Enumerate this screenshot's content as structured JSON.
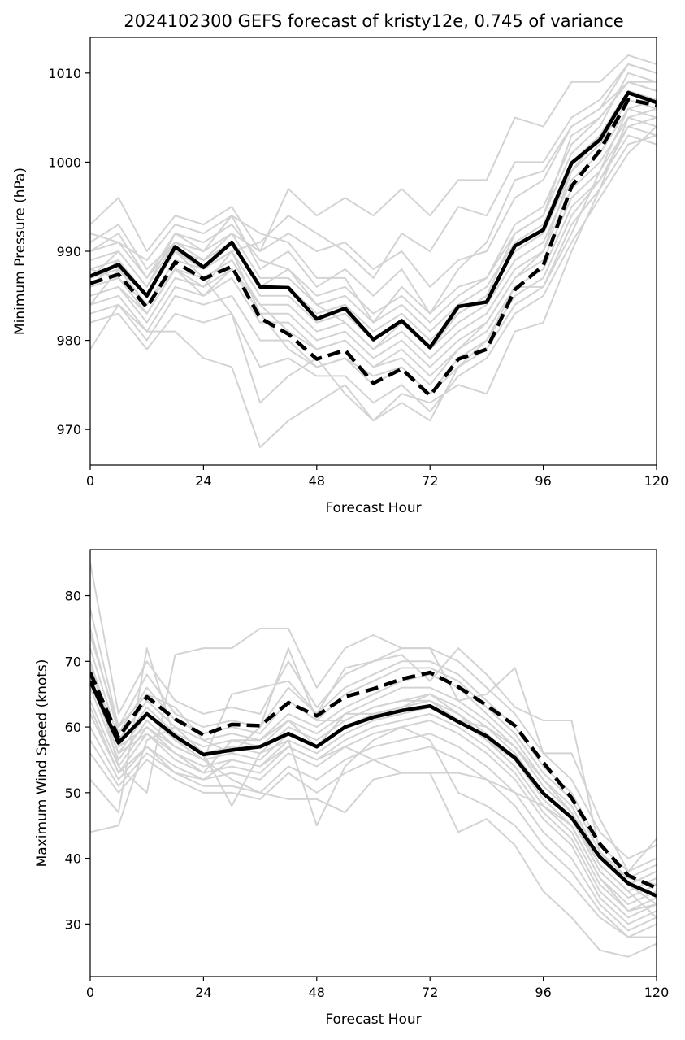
{
  "title": "2024102300 GEFS forecast of kristy12e, 0.745 of variance",
  "colors": {
    "members": "#d3d3d3",
    "solid_line": "#000000",
    "dashed_line": "#000000",
    "axes": "#000000"
  },
  "chart_data": [
    {
      "type": "line",
      "name": "pressure",
      "xlabel": "Forecast Hour",
      "ylabel": "Minimum Pressure (hPa)",
      "xlim": [
        0,
        120
      ],
      "ylim": [
        966,
        1014
      ],
      "xticks": [
        0,
        24,
        48,
        72,
        96,
        120
      ],
      "yticks": [
        970,
        980,
        990,
        1000,
        1010
      ],
      "x": [
        0,
        6,
        12,
        18,
        24,
        30,
        36,
        42,
        48,
        54,
        60,
        66,
        72,
        78,
        84,
        90,
        96,
        102,
        108,
        114,
        120
      ],
      "solid": [
        987.2,
        988.5,
        985.0,
        990.5,
        988.2,
        991.0,
        986.0,
        985.9,
        982.4,
        983.6,
        980.1,
        982.2,
        979.2,
        983.8,
        984.3,
        990.6,
        992.4,
        999.9,
        1002.5,
        1007.8,
        1006.7
      ],
      "dashed": [
        986.4,
        987.4,
        983.7,
        988.8,
        986.9,
        988.3,
        982.5,
        980.7,
        977.9,
        978.9,
        975.2,
        976.8,
        973.8,
        977.9,
        979.0,
        985.7,
        988.4,
        997.3,
        1001.3,
        1007.0,
        1006.4
      ],
      "members": [
        [
          993,
          996,
          990,
          994,
          993,
          995,
          990,
          992,
          990,
          991,
          988,
          990,
          986,
          989,
          990,
          996,
          998,
          1004,
          1006,
          1011,
          1010
        ],
        [
          992,
          991,
          989,
          993,
          992,
          994,
          988,
          990,
          986,
          988,
          985,
          988,
          983,
          986,
          987,
          993,
          995,
          1002,
          1005,
          1009,
          1008
        ],
        [
          990,
          992,
          987,
          992,
          991,
          993,
          989,
          988,
          985,
          986,
          983,
          985,
          982,
          985,
          987,
          992,
          994,
          1001,
          1004,
          1010,
          1009
        ],
        [
          989,
          990,
          986,
          991,
          990,
          992,
          987,
          987,
          984,
          985,
          982,
          984,
          981,
          984,
          986,
          991,
          993,
          1000,
          1003,
          1008,
          1007
        ],
        [
          988,
          989,
          985,
          990,
          989,
          991,
          986,
          986,
          983,
          984,
          981,
          983,
          980,
          983,
          985,
          990,
          992,
          999,
          1002,
          1007,
          1006
        ],
        [
          987,
          988,
          984,
          989,
          988,
          990,
          985,
          985,
          982,
          983,
          980,
          982,
          979,
          982,
          984,
          989,
          991,
          998,
          1001,
          1006,
          1005
        ],
        [
          986,
          987,
          983,
          988,
          987,
          989,
          984,
          984,
          981,
          982,
          979,
          981,
          978,
          981,
          983,
          988,
          990,
          997,
          1000,
          1005,
          1004
        ],
        [
          985,
          986,
          982,
          987,
          986,
          988,
          983,
          983,
          980,
          981,
          978,
          980,
          977,
          980,
          982,
          987,
          989,
          996,
          999,
          1004,
          1003
        ],
        [
          984,
          985,
          981,
          986,
          985,
          987,
          982,
          982,
          979,
          980,
          977,
          979,
          976,
          979,
          981,
          986,
          988,
          995,
          998,
          1003,
          1002
        ],
        [
          983,
          984,
          980,
          985,
          984,
          985,
          980,
          980,
          977,
          978,
          975,
          977,
          974,
          977,
          979,
          984,
          986,
          993,
          997,
          1002,
          1003
        ],
        [
          982,
          983,
          979,
          983,
          982,
          983,
          977,
          978,
          976,
          976,
          973,
          975,
          972,
          976,
          978,
          983,
          985,
          991,
          996,
          1001,
          1004
        ],
        [
          979,
          984,
          981,
          981,
          978,
          977,
          968,
          971,
          973,
          975,
          971,
          974,
          973,
          975,
          974,
          981,
          982,
          990,
          997,
          1005,
          1006
        ],
        [
          986,
          989,
          985,
          990,
          987,
          983,
          973,
          976,
          978,
          974,
          971,
          973,
          971,
          977,
          980,
          986,
          986,
          992,
          999,
          1006,
          1007
        ],
        [
          991,
          993,
          988,
          991,
          989,
          992,
          990,
          997,
          994,
          996,
          994,
          997,
          994,
          998,
          998,
          1005,
          1004,
          1009,
          1009,
          1012,
          1011
        ],
        [
          988,
          987,
          984,
          988,
          986,
          990,
          991,
          994,
          992,
          990,
          987,
          992,
          990,
          995,
          994,
          1000,
          1000,
          1005,
          1007,
          1011,
          1010
        ],
        [
          987,
          990,
          986,
          992,
          990,
          994,
          992,
          991,
          987,
          987,
          982,
          986,
          983,
          988,
          991,
          998,
          999,
          1004,
          1006,
          1009,
          1008
        ],
        [
          985,
          986,
          983,
          988,
          985,
          988,
          984,
          981,
          979,
          980,
          977,
          978,
          975,
          979,
          982,
          987,
          990,
          999,
          1003,
          1008,
          1007
        ],
        [
          990,
          991,
          987,
          991,
          989,
          991,
          986,
          988,
          984,
          982,
          979,
          982,
          979,
          983,
          985,
          992,
          994,
          1003,
          1005,
          1009,
          1009
        ],
        [
          984,
          988,
          985,
          990,
          988,
          990,
          983,
          979,
          977,
          978,
          976,
          977,
          974,
          978,
          980,
          985,
          987,
          994,
          998,
          1004,
          1005
        ]
      ]
    },
    {
      "type": "line",
      "name": "wind",
      "xlabel": "Forecast Hour",
      "ylabel": "Maximum Wind Speed (knots)",
      "xlim": [
        0,
        120
      ],
      "ylim": [
        22,
        87
      ],
      "xticks": [
        0,
        24,
        48,
        72,
        96,
        120
      ],
      "yticks": [
        30,
        40,
        50,
        60,
        70,
        80
      ],
      "x": [
        0,
        6,
        12,
        18,
        24,
        30,
        36,
        42,
        48,
        54,
        60,
        66,
        72,
        78,
        84,
        90,
        96,
        102,
        108,
        114,
        120
      ],
      "solid": [
        67.0,
        57.6,
        62.0,
        58.6,
        55.8,
        56.5,
        57.0,
        59.0,
        57.0,
        60.0,
        61.5,
        62.5,
        63.2,
        60.8,
        58.6,
        55.3,
        49.9,
        46.2,
        40.2,
        36.2,
        34.3
      ],
      "dashed": [
        68.3,
        58.4,
        64.6,
        61.2,
        58.8,
        60.4,
        60.2,
        63.7,
        61.7,
        64.6,
        65.8,
        67.3,
        68.3,
        66.1,
        63.3,
        60.2,
        54.6,
        49.2,
        42.2,
        37.4,
        35.5
      ],
      "members": [
        [
          85,
          62,
          70,
          64,
          62,
          63,
          62,
          70,
          63,
          68,
          70,
          72,
          72,
          70,
          66,
          62,
          56,
          52,
          44,
          40,
          42
        ],
        [
          78,
          60,
          68,
          62,
          60,
          61,
          60,
          66,
          62,
          66,
          68,
          70,
          70,
          68,
          64,
          60,
          54,
          50,
          42,
          38,
          40
        ],
        [
          75,
          59,
          66,
          61,
          59,
          60,
          59,
          64,
          61,
          65,
          67,
          69,
          69,
          67,
          63,
          59,
          53,
          49,
          41,
          37,
          39
        ],
        [
          72,
          58,
          64,
          60,
          58,
          59,
          58,
          62,
          60,
          63,
          65,
          67,
          68,
          66,
          62,
          58,
          52,
          48,
          40,
          36,
          38
        ],
        [
          70,
          57,
          63,
          59,
          57,
          58,
          57,
          61,
          59,
          62,
          64,
          66,
          66,
          64,
          61,
          57,
          51,
          47,
          39,
          35,
          37
        ],
        [
          68,
          56,
          62,
          58,
          56,
          57,
          56,
          60,
          58,
          61,
          63,
          64,
          65,
          63,
          60,
          56,
          50,
          46,
          38,
          34,
          36
        ],
        [
          66,
          55,
          61,
          57,
          55,
          56,
          55,
          59,
          57,
          60,
          62,
          63,
          64,
          62,
          59,
          55,
          49,
          45,
          37,
          33,
          35
        ],
        [
          64,
          54,
          60,
          56,
          54,
          55,
          54,
          58,
          56,
          59,
          61,
          62,
          63,
          61,
          58,
          54,
          48,
          44,
          36,
          32,
          34
        ],
        [
          62,
          53,
          59,
          55,
          53,
          54,
          53,
          57,
          55,
          58,
          60,
          61,
          62,
          60,
          57,
          53,
          47,
          43,
          35,
          31,
          33
        ],
        [
          60,
          52,
          57,
          54,
          52,
          53,
          52,
          56,
          54,
          57,
          59,
          60,
          61,
          59,
          56,
          52,
          46,
          42,
          34,
          30,
          32
        ],
        [
          58,
          51,
          56,
          53,
          51,
          51,
          50,
          54,
          52,
          55,
          57,
          58,
          59,
          57,
          54,
          50,
          44,
          40,
          33,
          29,
          31
        ],
        [
          56,
          50,
          55,
          52,
          50,
          50,
          49,
          53,
          50,
          53,
          55,
          56,
          57,
          55,
          52,
          48,
          42,
          38,
          32,
          28,
          30
        ],
        [
          44,
          45,
          58,
          60,
          56,
          48,
          56,
          58,
          45,
          54,
          58,
          60,
          58,
          50,
          48,
          45,
          40,
          36,
          31,
          28,
          28
        ],
        [
          52,
          47,
          72,
          58,
          55,
          52,
          50,
          49,
          49,
          47,
          52,
          53,
          53,
          44,
          46,
          42,
          35,
          31,
          26,
          25,
          27
        ],
        [
          70,
          54,
          50,
          71,
          72,
          72,
          75,
          75,
          66,
          72,
          74,
          72,
          72,
          64,
          65,
          69,
          56,
          56,
          46,
          38,
          43
        ],
        [
          69,
          57,
          60,
          57,
          55,
          65,
          66,
          67,
          62,
          69,
          70,
          71,
          67,
          72,
          68,
          63,
          61,
          61,
          41,
          36,
          33
        ],
        [
          63,
          53,
          57,
          53,
          52,
          55,
          54,
          57,
          55,
          57,
          55,
          53,
          53,
          53,
          52,
          50,
          48,
          45,
          37,
          32,
          33
        ],
        [
          74,
          60,
          65,
          63,
          58,
          56,
          60,
          72,
          61,
          61,
          63,
          64,
          64,
          61,
          60,
          57,
          52,
          47,
          40,
          37,
          36
        ],
        [
          67,
          56,
          59,
          56,
          53,
          58,
          58,
          61,
          57,
          62,
          62,
          63,
          65,
          62,
          58,
          55,
          50,
          46,
          39,
          35,
          31
        ]
      ]
    }
  ]
}
